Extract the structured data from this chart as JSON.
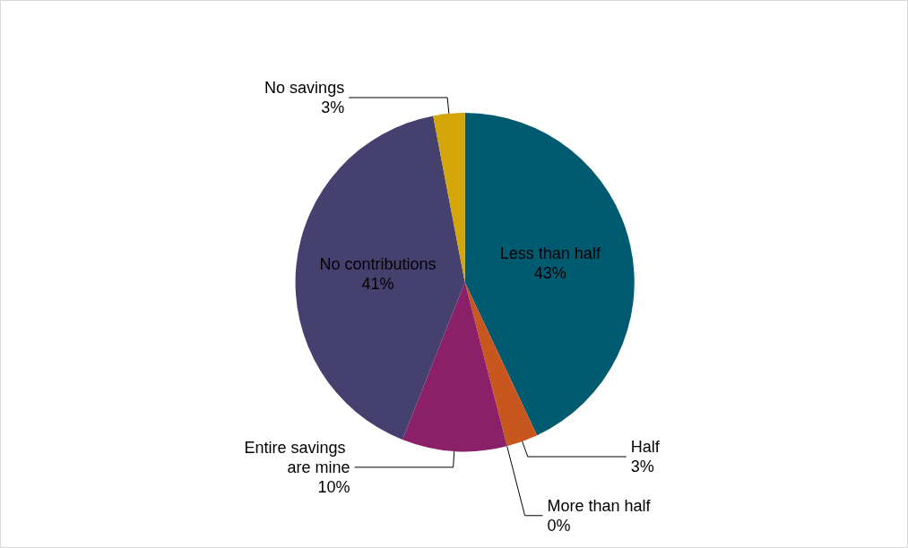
{
  "chart_data": {
    "type": "pie",
    "categories": [
      "Less than half",
      "Half",
      "More than half",
      "Entire savings are mine",
      "No contributions",
      "No savings"
    ],
    "values": [
      43,
      3,
      0,
      10,
      41,
      3
    ],
    "colors": [
      "#005a70",
      "#c8561f",
      "#7f7f7f",
      "#8b1f68",
      "#46406f",
      "#d4a60a"
    ],
    "value_labels": [
      "43%",
      "3%",
      "0%",
      "10%",
      "41%",
      "3%"
    ],
    "legend": false
  }
}
